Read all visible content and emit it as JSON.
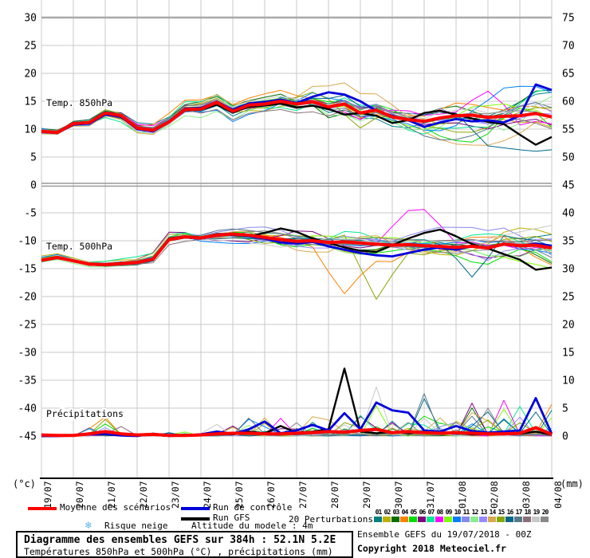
{
  "legend": {
    "mean_label": "Moyenne des scénarios",
    "control_label": "Run de contrôle",
    "gfs_label": "Run GFS",
    "perturbations_label": "20 Perturbations",
    "snow_icon": "❄",
    "snow_label": "Risque neige",
    "altitude_label": "Altitude du modele : 4m"
  },
  "footer": {
    "title": "Diagramme des ensembles GEFS sur 384h : 52.1N 5.2E",
    "subtitle": "Températures 850hPa et 500hPa (°C) , précipitations (mm)",
    "run_info": "Ensemble GEFS du 19/07/2018 - 00Z",
    "copyright": "Copyright 2018 Meteociel.fr"
  },
  "chart_data": {
    "type": "line",
    "time_step_days": 0.5,
    "x_dates": [
      "19/07",
      "20/07",
      "21/07",
      "22/07",
      "23/07",
      "24/07",
      "25/07",
      "26/07",
      "27/07",
      "28/07",
      "29/07",
      "30/07",
      "31/07",
      "01/08",
      "02/08",
      "03/08",
      "04/08"
    ],
    "left_axis": {
      "unit": "(°c)",
      "range": [
        30,
        -45
      ],
      "ticks": [
        30,
        25,
        20,
        15,
        10,
        5,
        0,
        -5,
        -10,
        -15,
        -20,
        -25,
        -30,
        -35,
        -40,
        -45
      ]
    },
    "right_axis": {
      "unit": "(mm)",
      "range": [
        75,
        0
      ],
      "ticks": [
        75,
        70,
        65,
        60,
        55,
        50,
        45,
        40,
        35,
        30,
        25,
        20,
        15,
        10,
        5,
        0
      ]
    },
    "panel_labels": [
      "Temp. 850hPa",
      "Temp. 500hPa",
      "Précipitations"
    ],
    "colors": {
      "mean": "#ff0000",
      "control": "#0000dd",
      "gfs": "#000000",
      "grid": "#c8c8c8",
      "grid_strong": "#a8a8a8",
      "snow": "#5ab4e6"
    },
    "series": {
      "t850": {
        "mean": [
          9.6,
          9.4,
          11.0,
          11.2,
          12.9,
          12.4,
          10.2,
          9.8,
          11.3,
          13.5,
          13.6,
          14.8,
          13.2,
          14.3,
          14.5,
          15.0,
          14.5,
          14.9,
          14.0,
          14.5,
          12.9,
          13.4,
          12.2,
          11.7,
          11.4,
          12.0,
          12.4,
          12.5,
          12.1,
          12.3,
          12.4,
          12.8,
          12.2
        ],
        "control": [
          9.5,
          9.3,
          10.8,
          11.0,
          12.6,
          12.2,
          10.0,
          9.6,
          11.4,
          13.7,
          13.8,
          14.9,
          13.5,
          14.6,
          14.9,
          15.3,
          14.7,
          15.8,
          16.6,
          16.2,
          15.0,
          13.3,
          12.4,
          11.6,
          10.4,
          11.2,
          11.8,
          11.4,
          11.6,
          11.2,
          12.4,
          18.0,
          17.0
        ],
        "gfs": [
          9.6,
          9.4,
          10.9,
          11.1,
          12.7,
          12.3,
          10.1,
          9.9,
          11.2,
          13.4,
          13.5,
          14.4,
          13.0,
          14.0,
          14.2,
          14.6,
          13.9,
          14.2,
          13.6,
          12.6,
          12.9,
          12.4,
          11.1,
          11.6,
          12.9,
          13.3,
          12.6,
          11.9,
          11.3,
          10.9,
          9.0,
          7.2,
          8.6
        ]
      },
      "t500": {
        "mean": [
          -13.5,
          -13.0,
          -13.6,
          -14.2,
          -14.3,
          -14.1,
          -13.9,
          -13.3,
          -9.8,
          -9.3,
          -9.5,
          -9.0,
          -8.8,
          -9.0,
          -9.4,
          -9.8,
          -10.1,
          -10.0,
          -10.3,
          -10.2,
          -10.4,
          -10.6,
          -10.8,
          -10.7,
          -10.9,
          -11.0,
          -11.2,
          -11.0,
          -11.3,
          -10.6,
          -10.9,
          -10.8,
          -11.3
        ],
        "control": [
          -13.5,
          -13.1,
          -13.6,
          -14.2,
          -14.3,
          -14.1,
          -13.9,
          -13.4,
          -9.9,
          -9.4,
          -9.6,
          -9.1,
          -8.9,
          -9.2,
          -9.6,
          -10.3,
          -10.5,
          -10.2,
          -11.0,
          -11.6,
          -12.2,
          -12.6,
          -12.8,
          -12.2,
          -11.6,
          -11.2,
          -11.6,
          -11.0,
          -11.3,
          -10.7,
          -11.0,
          -10.5,
          -10.9
        ],
        "gfs": [
          -13.4,
          -13.0,
          -13.7,
          -14.3,
          -14.2,
          -14.0,
          -13.8,
          -13.2,
          -9.6,
          -9.2,
          -9.4,
          -8.8,
          -9.0,
          -9.2,
          -8.6,
          -7.8,
          -8.4,
          -9.6,
          -10.4,
          -11.2,
          -11.8,
          -12.0,
          -10.8,
          -9.6,
          -8.6,
          -8.0,
          -9.2,
          -10.6,
          -11.4,
          -12.4,
          -13.4,
          -15.2,
          -14.8
        ]
      },
      "precip": {
        "mean": [
          0.2,
          0.1,
          0.1,
          0.4,
          0.8,
          0.4,
          0.2,
          0.3,
          0.1,
          0.1,
          0.2,
          0.4,
          0.5,
          0.5,
          0.4,
          0.4,
          0.5,
          0.6,
          0.8,
          0.7,
          1.0,
          1.2,
          0.6,
          0.8,
          0.6,
          0.5,
          0.6,
          0.5,
          0.4,
          0.4,
          0.5,
          1.5,
          0.3
        ],
        "control": [
          0,
          0,
          0.1,
          0.3,
          0.4,
          0.1,
          0,
          0.4,
          0.1,
          0.1,
          0.3,
          0.8,
          0.4,
          1.2,
          2.6,
          0.5,
          1.0,
          2.0,
          1.0,
          4.1,
          1.2,
          6.0,
          4.6,
          4.2,
          1.0,
          0.8,
          1.8,
          0.9,
          0.6,
          0.8,
          1.0,
          6.8,
          0.4
        ],
        "gfs": [
          0,
          0,
          0.1,
          0.5,
          0.3,
          0.1,
          0.1,
          0.2,
          0,
          0.1,
          0.2,
          0.5,
          0.3,
          0.8,
          0.5,
          1.8,
          0.6,
          0.8,
          1.2,
          12.1,
          0.8,
          0.5,
          0.7,
          0.5,
          0.8,
          0.4,
          0.5,
          0.3,
          0.4,
          0.3,
          0.4,
          0.8,
          0.2
        ]
      }
    },
    "perturbations": {
      "count": 20,
      "labels": [
        "01",
        "02",
        "03",
        "04",
        "05",
        "06",
        "07",
        "08",
        "09",
        "10",
        "11",
        "12",
        "13",
        "14",
        "15",
        "16",
        "17",
        "18",
        "19",
        "20"
      ],
      "colors": [
        "#008080",
        "#bcb000",
        "#007000",
        "#ff8000",
        "#00dd00",
        "#800080",
        "#00e890",
        "#ff00ff",
        "#80ff00",
        "#0080ff",
        "#8888ee",
        "#88ee88",
        "#9988ff",
        "#d8a850",
        "#88a800",
        "#006888",
        "#587888",
        "#887078",
        "#c8c8c8",
        "#888888"
      ]
    },
    "ensemble_features": [
      {
        "panel": "t850",
        "member": 7,
        "i": 28,
        "value": 16.8
      },
      {
        "panel": "t850",
        "member": 6,
        "i": 31,
        "value": 16.2
      },
      {
        "panel": "t850",
        "member": 6,
        "i": 32,
        "value": 17.2
      },
      {
        "panel": "t850",
        "member": 0,
        "i": 32,
        "value": 16.6
      },
      {
        "panel": "t850",
        "member": 11,
        "i": 29,
        "value": 9.8
      },
      {
        "panel": "t850",
        "member": 14,
        "i": 20,
        "value": 10.2
      },
      {
        "panel": "t850",
        "member": 15,
        "i": 28,
        "value": 7.5
      },
      {
        "panel": "t850",
        "member": 15,
        "i": 29,
        "value": 6.5
      },
      {
        "panel": "t850",
        "member": 15,
        "i": 30,
        "value": 6.8
      },
      {
        "panel": "t850",
        "member": 15,
        "i": 31,
        "value": 5.8
      },
      {
        "panel": "t850",
        "member": 15,
        "i": 32,
        "value": 6.3
      },
      {
        "panel": "t500",
        "member": 7,
        "i": 23,
        "value": -4.8
      },
      {
        "panel": "t500",
        "member": 7,
        "i": 24,
        "value": -4.4
      },
      {
        "panel": "t500",
        "member": 3,
        "i": 19,
        "value": -19.5
      },
      {
        "panel": "t500",
        "member": 14,
        "i": 21,
        "value": -20.5
      },
      {
        "panel": "t500",
        "member": 15,
        "i": 27,
        "value": -16.5
      },
      {
        "panel": "precip",
        "member": 18,
        "i": 21,
        "value": 8.8
      },
      {
        "panel": "precip",
        "member": 16,
        "i": 24,
        "value": 7.6
      },
      {
        "panel": "precip",
        "member": 8,
        "i": 21,
        "value": 5.4
      },
      {
        "panel": "precip",
        "member": 15,
        "i": 24,
        "value": 6.7
      },
      {
        "panel": "precip",
        "member": 5,
        "i": 27,
        "value": 5.9
      },
      {
        "panel": "precip",
        "member": 7,
        "i": 29,
        "value": 6.4
      },
      {
        "panel": "precip",
        "member": 6,
        "i": 30,
        "value": 5.3
      },
      {
        "panel": "precip",
        "member": 19,
        "i": 28,
        "value": 5.0
      },
      {
        "panel": "precip",
        "member": 3,
        "i": 4,
        "value": 3.4
      },
      {
        "panel": "precip",
        "member": 14,
        "i": 4,
        "value": 3.0
      }
    ]
  }
}
